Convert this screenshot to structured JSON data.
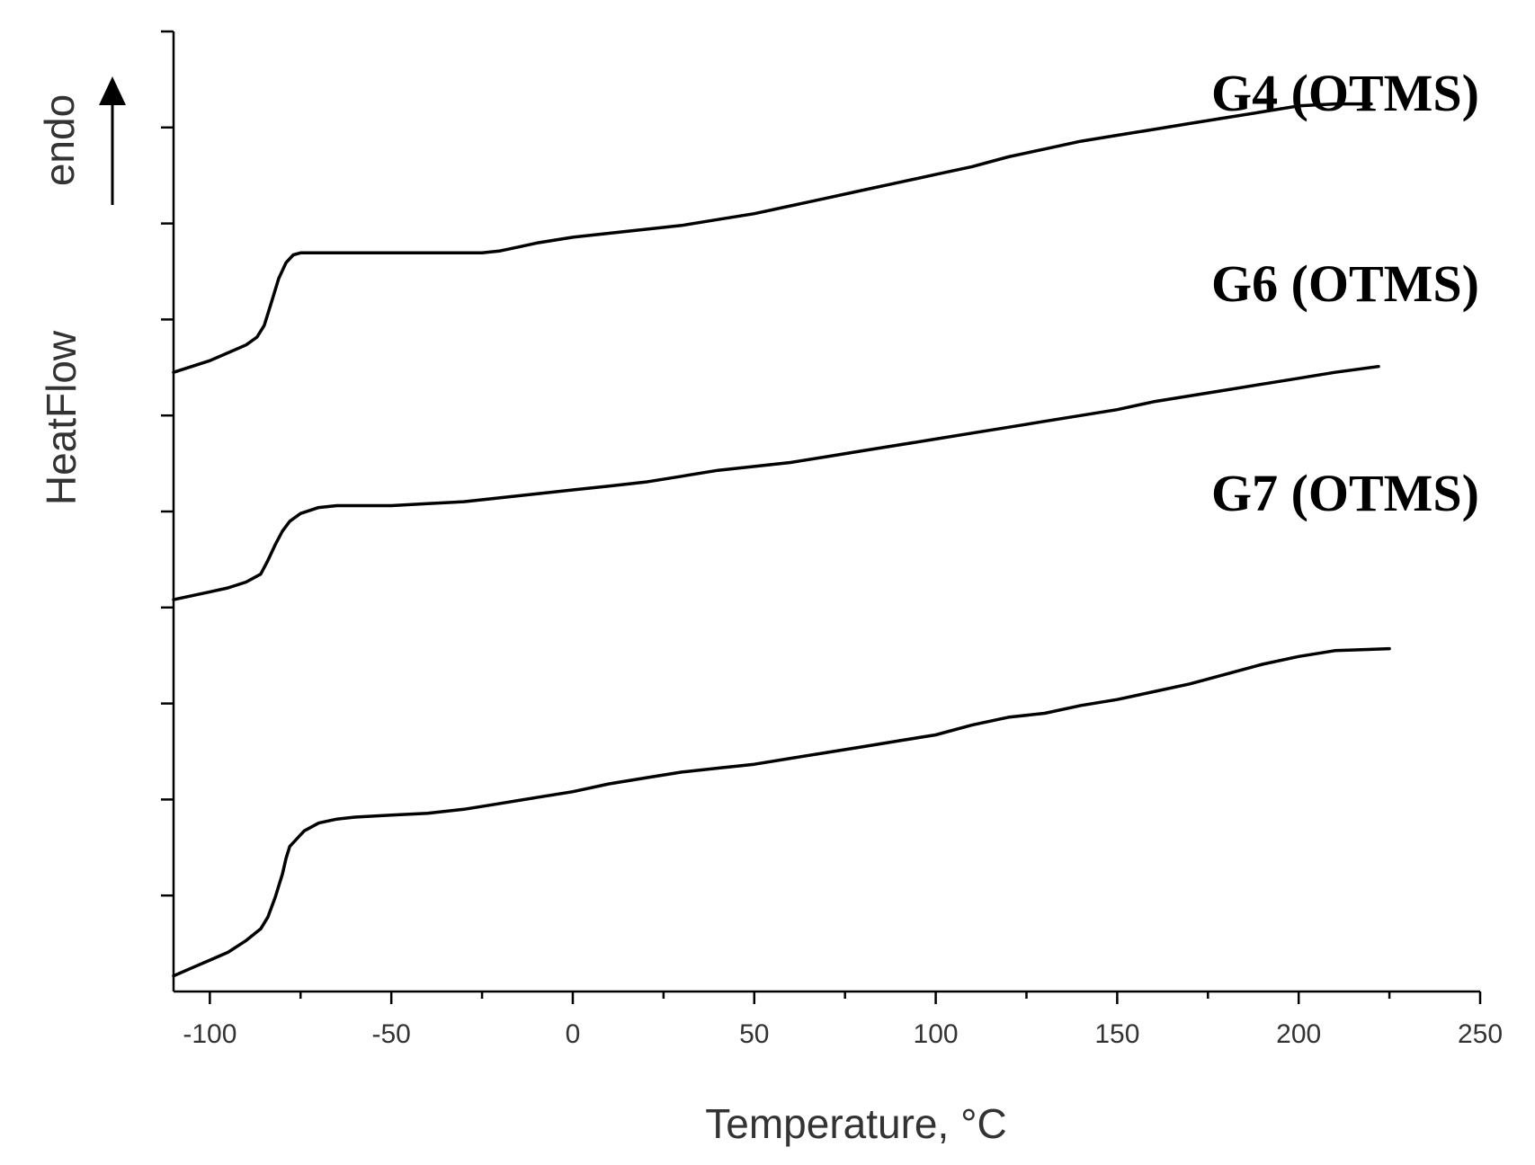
{
  "chart_data": {
    "type": "line",
    "xlabel": "Temperature, °C",
    "ylabel": "HeatFlow",
    "endo_label": "endo",
    "xlim": [
      -110,
      250
    ],
    "xticks": [
      -100,
      -50,
      0,
      50,
      100,
      150,
      200,
      250
    ],
    "x_minor_step": 25,
    "y_ticks_count": 10,
    "y_ticklabels": false,
    "grid": false,
    "series": [
      {
        "name": "G4 (OTMS)",
        "x": [
          -110,
          -100,
          -95,
          -90,
          -87,
          -85,
          -83,
          -81,
          -79,
          -77,
          -75,
          -70,
          -60,
          -50,
          -40,
          -30,
          -25,
          -20,
          -15,
          -10,
          0,
          10,
          20,
          30,
          40,
          50,
          60,
          70,
          80,
          90,
          100,
          110,
          120,
          130,
          140,
          150,
          160,
          170,
          180,
          190,
          200,
          210,
          220
        ],
        "y": [
          0.58,
          0.61,
          0.63,
          0.65,
          0.67,
          0.7,
          0.76,
          0.82,
          0.86,
          0.88,
          0.885,
          0.885,
          0.885,
          0.885,
          0.885,
          0.885,
          0.885,
          0.89,
          0.9,
          0.91,
          0.925,
          0.935,
          0.945,
          0.955,
          0.97,
          0.985,
          1.005,
          1.025,
          1.045,
          1.065,
          1.085,
          1.105,
          1.13,
          1.15,
          1.17,
          1.185,
          1.2,
          1.215,
          1.23,
          1.245,
          1.26,
          1.265,
          1.265
        ]
      },
      {
        "name": "G6 (OTMS)",
        "x": [
          -110,
          -100,
          -95,
          -90,
          -86,
          -84,
          -82,
          -80,
          -78,
          -75,
          -70,
          -65,
          -60,
          -50,
          -40,
          -30,
          -20,
          -10,
          0,
          10,
          20,
          30,
          40,
          50,
          60,
          70,
          80,
          90,
          100,
          110,
          120,
          130,
          140,
          150,
          160,
          170,
          180,
          190,
          200,
          210,
          222
        ],
        "y": [
          0.0,
          0.02,
          0.03,
          0.045,
          0.065,
          0.1,
          0.14,
          0.175,
          0.2,
          0.22,
          0.235,
          0.24,
          0.24,
          0.24,
          0.245,
          0.25,
          0.26,
          0.27,
          0.28,
          0.29,
          0.3,
          0.315,
          0.33,
          0.34,
          0.35,
          0.365,
          0.38,
          0.395,
          0.41,
          0.425,
          0.44,
          0.455,
          0.47,
          0.485,
          0.505,
          0.52,
          0.535,
          0.55,
          0.565,
          0.58,
          0.595
        ]
      },
      {
        "name": "G7 (OTMS)",
        "x": [
          -110,
          -105,
          -100,
          -95,
          -90,
          -86,
          -84,
          -82,
          -80,
          -79,
          -78,
          -76,
          -74,
          -72,
          -70,
          -65,
          -60,
          -50,
          -40,
          -30,
          -20,
          -10,
          0,
          10,
          20,
          30,
          40,
          50,
          60,
          70,
          80,
          90,
          100,
          110,
          120,
          130,
          140,
          150,
          160,
          170,
          180,
          190,
          200,
          210,
          225
        ],
        "y": [
          -0.96,
          -0.94,
          -0.92,
          -0.9,
          -0.87,
          -0.84,
          -0.81,
          -0.76,
          -0.7,
          -0.66,
          -0.63,
          -0.61,
          -0.59,
          -0.58,
          -0.57,
          -0.56,
          -0.555,
          -0.55,
          -0.545,
          -0.535,
          -0.52,
          -0.505,
          -0.49,
          -0.47,
          -0.455,
          -0.44,
          -0.43,
          -0.42,
          -0.405,
          -0.39,
          -0.375,
          -0.36,
          -0.345,
          -0.32,
          -0.3,
          -0.29,
          -0.27,
          -0.255,
          -0.235,
          -0.215,
          -0.19,
          -0.165,
          -0.145,
          -0.13,
          -0.125
        ]
      }
    ]
  }
}
